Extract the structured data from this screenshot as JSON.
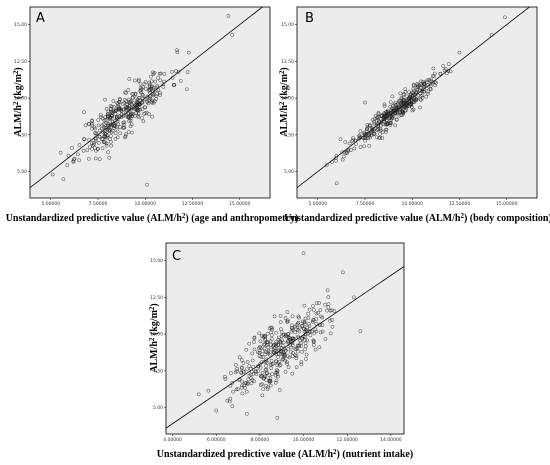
{
  "chart_data": [
    {
      "type": "scatter",
      "panel": "A",
      "xlabel": "Unstandardized predictive value (ALM/h²) (age and anthropometry)",
      "ylabel": "ALM/h² (kg/m²)",
      "xticks": [
        "5.00000",
        "7.50000",
        "10.00000",
        "12.50000",
        "15.00000"
      ],
      "yticks": [
        "5.00",
        "7.50",
        "10.00",
        "12.50",
        "15.00"
      ],
      "xlim": [
        3.9,
        16.6
      ],
      "ylim": [
        3.2,
        16.2
      ],
      "fit_line": [
        [
          3.9,
          3.9
        ],
        [
          16.6,
          16.6
        ]
      ],
      "grid": false,
      "center": [
        8.9,
        9.0
      ],
      "spread_x": 1.2,
      "resid_sd": 0.75,
      "n": 380,
      "seed": 11,
      "outliers": [
        [
          14.4,
          15.6
        ],
        [
          14.6,
          14.3
        ],
        [
          10.1,
          4.1
        ],
        [
          12.2,
          10.6
        ],
        [
          5.1,
          4.8
        ],
        [
          12.3,
          13.1
        ]
      ]
    },
    {
      "type": "scatter",
      "panel": "B",
      "xlabel": "Unstandardized predictive value (ALM/h²) (body composition)",
      "ylabel": "ALM/h² (kg/m²)",
      "xticks": [
        "5.00000",
        "7.50000",
        "10.00000",
        "12.50000",
        "15.00000"
      ],
      "yticks": [
        "5.00",
        "7.50",
        "10.00",
        "12.50",
        "15.00"
      ],
      "xlim": [
        3.9,
        16.6
      ],
      "ylim": [
        3.2,
        16.2
      ],
      "fit_line": [
        [
          3.9,
          3.9
        ],
        [
          16.6,
          16.6
        ]
      ],
      "grid": false,
      "center": [
        9.0,
        9.0
      ],
      "spread_x": 1.2,
      "resid_sd": 0.38,
      "n": 380,
      "seed": 23,
      "outliers": [
        [
          14.9,
          15.5
        ],
        [
          14.2,
          14.3
        ],
        [
          7.5,
          9.7
        ],
        [
          6.0,
          4.2
        ],
        [
          12.5,
          13.1
        ],
        [
          6.2,
          7.2
        ]
      ]
    },
    {
      "type": "scatter",
      "panel": "C",
      "xlabel": "Unstandardized predictive value (ALM/h²) (nutrient intake)",
      "ylabel": "ALM/h² (kg/m²)",
      "xticks": [
        "4.00000",
        "6.00000",
        "8.00000",
        "10.00000",
        "12.00000",
        "14.00000"
      ],
      "yticks": [
        "5.00",
        "7.50",
        "10.00",
        "12.50",
        "15.00"
      ],
      "xlim": [
        3.7,
        14.6
      ],
      "ylim": [
        3.2,
        16.2
      ],
      "fit_line": [
        [
          3.7,
          3.6
        ],
        [
          14.6,
          14.6
        ]
      ],
      "grid": false,
      "center": [
        8.9,
        9.0
      ],
      "spread_x": 1.05,
      "resid_sd": 1.0,
      "n": 380,
      "seed": 37,
      "outliers": [
        [
          10.0,
          15.5
        ],
        [
          11.8,
          14.2
        ],
        [
          8.8,
          4.3
        ],
        [
          6.0,
          4.8
        ],
        [
          5.2,
          5.9
        ],
        [
          12.3,
          12.5
        ],
        [
          12.6,
          10.2
        ]
      ]
    }
  ]
}
